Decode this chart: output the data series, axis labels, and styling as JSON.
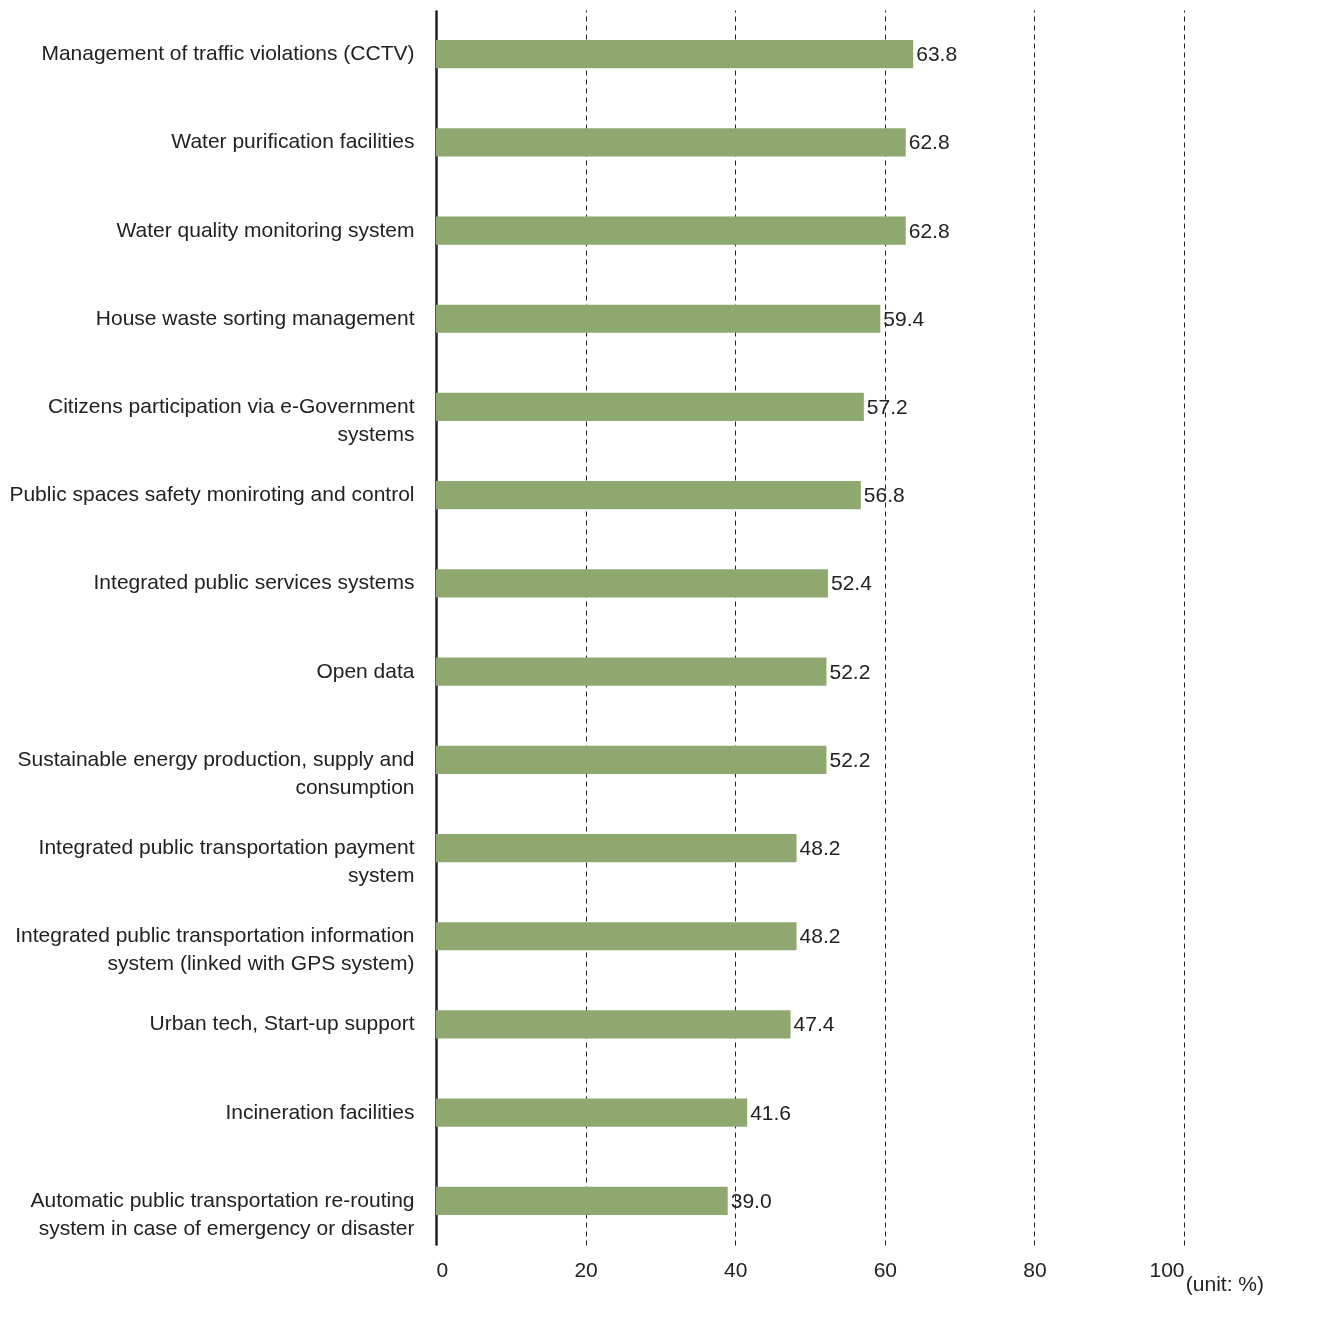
{
  "chart_data": {
    "type": "bar",
    "orientation": "horizontal",
    "categories": [
      "Management of traffic violations (CCTV)",
      "Water purification facilities",
      "Water quality monitoring system",
      "House waste sorting management",
      "Citizens participation via e-Government systems",
      "Public spaces safety moniroting and control",
      "Integrated public services systems",
      "Open data",
      "Sustainable energy production, supply and consumption",
      "Integrated public transportation payment system",
      "Integrated public transportation information system (linked with GPS system)",
      "Urban tech, Start-up support",
      "Incineration facilities",
      "Automatic public transportation re-routing system in case of emergency or disaster"
    ],
    "values": [
      63.8,
      62.8,
      62.8,
      59.4,
      57.2,
      56.8,
      52.4,
      52.2,
      52.2,
      48.2,
      48.2,
      47.4,
      41.6,
      39.0
    ],
    "value_labels": [
      "63.8",
      "62.8",
      "62.8",
      "59.4",
      "57.2",
      "56.8",
      "52.4",
      "52.2",
      "52.2",
      "48.2",
      "48.2",
      "47.4",
      "41.6",
      "39.0"
    ],
    "color": "#8fa870",
    "xlim": [
      0,
      100
    ],
    "xticks": [
      0,
      20,
      40,
      60,
      80,
      100
    ],
    "grid": "x",
    "line_style": "dashed",
    "annotations": [
      "(unit: %)"
    ]
  }
}
